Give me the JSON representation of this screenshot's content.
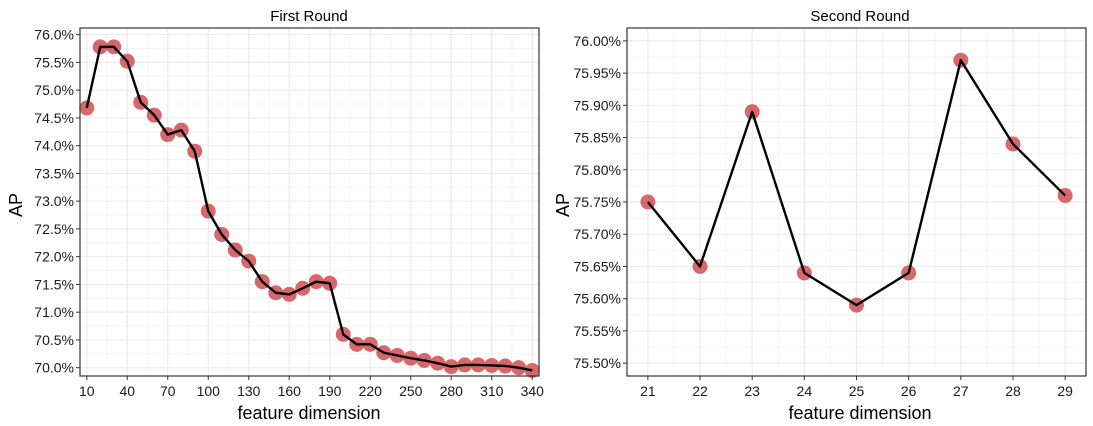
{
  "chart_data": [
    {
      "type": "line",
      "title": "First Round",
      "xlabel": "feature dimension",
      "ylabel": "AP",
      "x_ticks": [
        "10",
        "40",
        "70",
        "100",
        "130",
        "160",
        "190",
        "220",
        "250",
        "280",
        "310",
        "340"
      ],
      "y_ticks": [
        "70.0%",
        "70.5%",
        "71.0%",
        "71.5%",
        "72.0%",
        "72.5%",
        "73.0%",
        "73.5%",
        "74.0%",
        "74.5%",
        "75.0%",
        "75.5%",
        "76.0%"
      ],
      "xlim": [
        5,
        345
      ],
      "ylim": [
        69.85,
        76.12
      ],
      "grid": true,
      "series": [
        {
          "x": [
            10,
            20,
            30,
            40,
            50,
            60,
            70,
            80,
            90,
            100,
            110,
            120,
            130,
            140,
            150,
            160,
            170,
            180,
            190,
            200,
            210,
            220,
            230,
            240,
            250,
            260,
            270,
            280,
            290,
            300,
            310,
            320,
            330,
            340
          ],
          "values": [
            74.68,
            75.78,
            75.78,
            75.52,
            74.78,
            74.55,
            74.2,
            74.28,
            73.9,
            72.82,
            72.4,
            72.12,
            71.92,
            71.55,
            71.35,
            71.32,
            71.43,
            71.55,
            71.52,
            70.6,
            70.42,
            70.42,
            70.27,
            70.22,
            70.17,
            70.13,
            70.08,
            70.02,
            70.05,
            70.05,
            70.04,
            70.03,
            70.0,
            69.95
          ]
        }
      ]
    },
    {
      "type": "line",
      "title": "Second Round",
      "xlabel": "feature dimension",
      "ylabel": "AP",
      "x_ticks": [
        "21",
        "22",
        "23",
        "24",
        "25",
        "26",
        "27",
        "28",
        "29"
      ],
      "y_ticks": [
        "75.50%",
        "75.55%",
        "75.60%",
        "75.65%",
        "75.70%",
        "75.75%",
        "75.80%",
        "75.85%",
        "75.90%",
        "75.95%",
        "76.00%"
      ],
      "xlim": [
        20.6,
        29.4
      ],
      "ylim": [
        75.48,
        76.02
      ],
      "grid": true,
      "series": [
        {
          "x": [
            21,
            22,
            23,
            24,
            25,
            26,
            27,
            28,
            29
          ],
          "values": [
            75.75,
            75.65,
            75.89,
            75.64,
            75.59,
            75.64,
            75.97,
            75.84,
            75.76
          ]
        }
      ]
    }
  ],
  "colors": {
    "points": "#d9666b",
    "line": "#000000",
    "grid_major": "#ebebeb",
    "grid_minor": "#f4f4f4",
    "panel_border": "#333333"
  }
}
